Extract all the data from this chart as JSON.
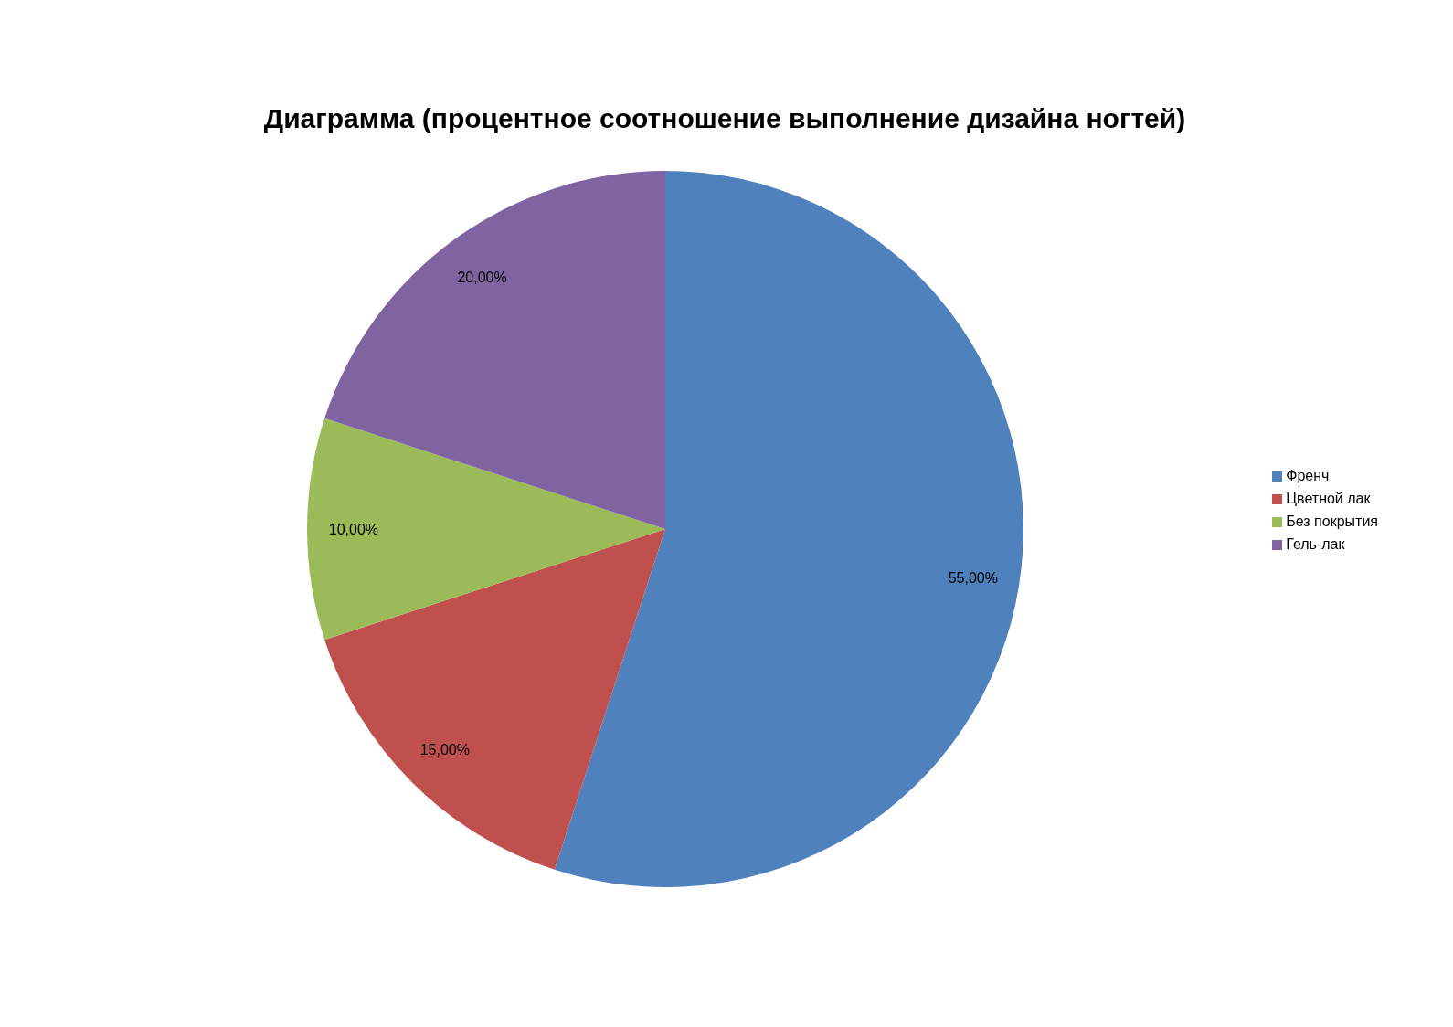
{
  "chart_data": {
    "type": "pie",
    "title": "Диаграмма (процентное соотношение выполнение дизайна ногтей)",
    "categories": [
      "Френч",
      "Цветной лак",
      "Без покрытия",
      "Гель-лак"
    ],
    "values": [
      55,
      15,
      10,
      20
    ],
    "colors": [
      "#4f81bd",
      "#c0504d",
      "#9bbb59",
      "#8064a2"
    ],
    "value_labels": [
      "55,00%",
      "15,00%",
      "10,00%",
      "20,00%"
    ],
    "legend": "right"
  }
}
